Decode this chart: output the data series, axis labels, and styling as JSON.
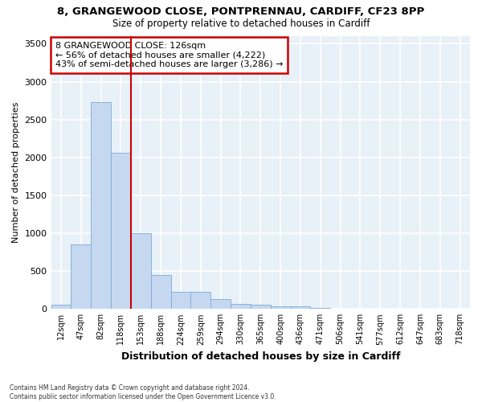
{
  "title_line1": "8, GRANGEWOOD CLOSE, PONTPRENNAU, CARDIFF, CF23 8PP",
  "title_line2": "Size of property relative to detached houses in Cardiff",
  "xlabel": "Distribution of detached houses by size in Cardiff",
  "ylabel": "Number of detached properties",
  "categories": [
    "12sqm",
    "47sqm",
    "82sqm",
    "118sqm",
    "153sqm",
    "188sqm",
    "224sqm",
    "259sqm",
    "294sqm",
    "330sqm",
    "365sqm",
    "400sqm",
    "436sqm",
    "471sqm",
    "506sqm",
    "541sqm",
    "577sqm",
    "612sqm",
    "647sqm",
    "683sqm",
    "718sqm"
  ],
  "values": [
    60,
    850,
    2730,
    2060,
    1000,
    450,
    230,
    230,
    130,
    65,
    55,
    30,
    30,
    10,
    5,
    3,
    2,
    1,
    1,
    0,
    0
  ],
  "bar_color": "#c5d8f0",
  "bar_edge_color": "#7aadd4",
  "bg_color": "#e8f0f8",
  "grid_color": "#ffffff",
  "vline_color": "#cc0000",
  "annotation_text": "8 GRANGEWOOD CLOSE: 126sqm\n← 56% of detached houses are smaller (4,222)\n43% of semi-detached houses are larger (3,286) →",
  "ylim": [
    0,
    3600
  ],
  "yticks": [
    0,
    500,
    1000,
    1500,
    2000,
    2500,
    3000,
    3500
  ],
  "footer": "Contains HM Land Registry data © Crown copyright and database right 2024.\nContains public sector information licensed under the Open Government Licence v3.0."
}
